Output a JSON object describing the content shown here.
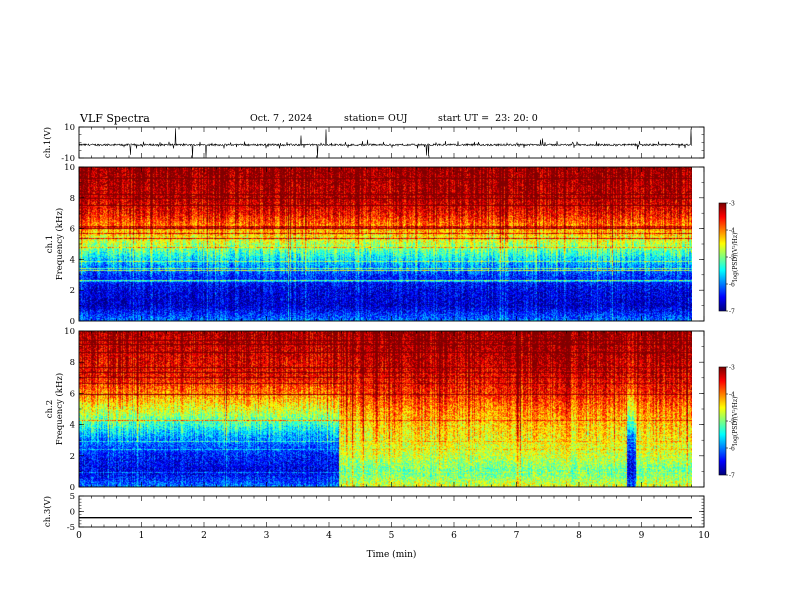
{
  "header": {
    "title": "VLF Spectra",
    "date": "Oct. 7 , 2024",
    "station": "station= OUJ",
    "start": "start UT =  23: 20: 0"
  },
  "chart_data": [
    {
      "type": "line",
      "panel": "ch1-waveform",
      "ylabel": "ch.1(V)",
      "ylim": [
        -10,
        10
      ],
      "yticks": [
        "10",
        "-10"
      ],
      "xlim": [
        0,
        10
      ],
      "description_level": -1.5,
      "noise_range": [
        -4,
        1
      ],
      "color": "#000000"
    },
    {
      "type": "heatmap",
      "panel": "ch1-spectrogram",
      "ylabel_line1": "ch.1",
      "ylabel_line2": "Frequency (kHz)",
      "ylim": [
        0,
        10
      ],
      "yticks": [
        "0",
        "2",
        "4",
        "6",
        "8",
        "10"
      ],
      "xlim": [
        0,
        9.8
      ],
      "colorbar": {
        "label": "log(PSD)(V²/Hz)",
        "range": [
          -7,
          -3
        ],
        "ticks": [
          "-3",
          "-4",
          "-5",
          "-6",
          "-7"
        ]
      },
      "band_profile_kHz": [
        {
          "freq": 0,
          "level": -6.0
        },
        {
          "freq": 1,
          "level": -6.7
        },
        {
          "freq": 2,
          "level": -6.6
        },
        {
          "freq": 3,
          "level": -6.3
        },
        {
          "freq": 4,
          "level": -5.6
        },
        {
          "freq": 5,
          "level": -4.8
        },
        {
          "freq": 6,
          "level": -4.1
        },
        {
          "freq": 7,
          "level": -3.5
        },
        {
          "freq": 8,
          "level": -3.2
        },
        {
          "freq": 10,
          "level": -3.0
        }
      ]
    },
    {
      "type": "heatmap",
      "panel": "ch2-spectrogram",
      "ylabel_line1": "ch.2",
      "ylabel_line2": "Frequency (kHz)",
      "ylim": [
        0,
        10
      ],
      "yticks": [
        "0",
        "2",
        "4",
        "6",
        "8",
        "10"
      ],
      "xlim": [
        0,
        9.8
      ],
      "colorbar": {
        "label": "log(PSD)(V²/Hz)",
        "range": [
          -7,
          -3
        ],
        "ticks": [
          "-3",
          "-4",
          "-5",
          "-6",
          "-7"
        ]
      },
      "regime_change_min": 4.15,
      "gap_min": [
        8.75,
        8.9
      ],
      "band_profile_kHz_before": [
        {
          "freq": 0,
          "level": -6.0
        },
        {
          "freq": 1,
          "level": -6.6
        },
        {
          "freq": 2,
          "level": -6.4
        },
        {
          "freq": 3,
          "level": -6.0
        },
        {
          "freq": 4,
          "level": -5.3
        },
        {
          "freq": 5,
          "level": -4.6
        },
        {
          "freq": 6,
          "level": -4.0
        },
        {
          "freq": 7,
          "level": -3.5
        },
        {
          "freq": 10,
          "level": -3.1
        }
      ],
      "band_profile_kHz_after": [
        {
          "freq": 0,
          "level": -4.6
        },
        {
          "freq": 1,
          "level": -5.1
        },
        {
          "freq": 2,
          "level": -4.7
        },
        {
          "freq": 3,
          "level": -4.5
        },
        {
          "freq": 4,
          "level": -4.3
        },
        {
          "freq": 5,
          "level": -4.0
        },
        {
          "freq": 6,
          "level": -3.6
        },
        {
          "freq": 8,
          "level": -3.2
        },
        {
          "freq": 10,
          "level": -3.0
        }
      ]
    },
    {
      "type": "line",
      "panel": "ch3-waveform",
      "ylabel": "ch.3(V)",
      "ylim": [
        -5,
        5
      ],
      "yticks": [
        "5",
        "0",
        "-5"
      ],
      "xlim": [
        0,
        10
      ],
      "level": -2.0,
      "color": "#000000"
    }
  ],
  "x_axis": {
    "label": "Time (min)",
    "ticks": [
      "0",
      "1",
      "2",
      "3",
      "4",
      "5",
      "6",
      "7",
      "8",
      "9",
      "10"
    ]
  }
}
